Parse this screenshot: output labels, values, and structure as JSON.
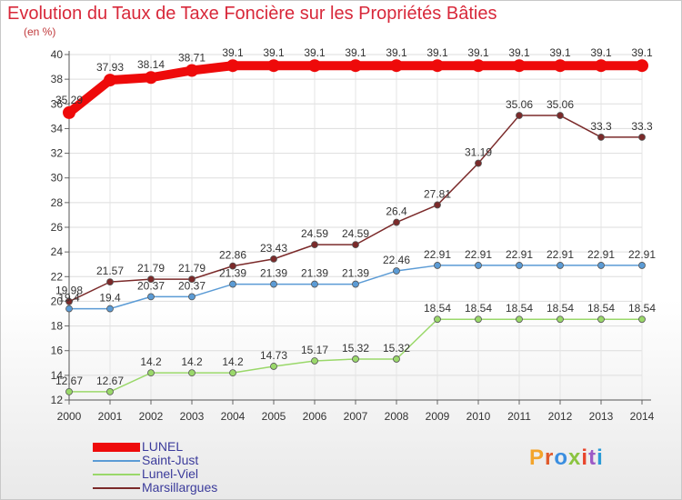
{
  "header": {
    "title": "Evolution du Taux de Taxe Foncière sur les Propriétés Bâties",
    "subtitle": "(en %)"
  },
  "brand": {
    "logo_text": "Proxiti",
    "logo_colors": [
      "#f3a42b",
      "#e05a2b",
      "#3a8ee0",
      "#8bc440",
      "#e8452c",
      "#9c5bc6",
      "#2b9bd6"
    ]
  },
  "chart_data": {
    "type": "line",
    "title": "Evolution du Taux de Taxe Foncière sur les Propriétés Bâties",
    "ylabel": "(en %)",
    "xlabel": "",
    "ylim": [
      12,
      40
    ],
    "yticks": [
      12,
      14,
      16,
      18,
      20,
      22,
      24,
      26,
      28,
      30,
      32,
      34,
      36,
      38,
      40
    ],
    "categories": [
      "2000",
      "2001",
      "2002",
      "2003",
      "2004",
      "2005",
      "2006",
      "2007",
      "2008",
      "2009",
      "2010",
      "2011",
      "2012",
      "2013",
      "2014"
    ],
    "grid": true,
    "legend_position": "bottom-left",
    "series": [
      {
        "name": "LUNEL",
        "color": "#ee0a0a",
        "bold": true,
        "values": [
          35.29,
          37.93,
          38.14,
          38.71,
          39.1,
          39.1,
          39.1,
          39.1,
          39.1,
          39.1,
          39.1,
          39.1,
          39.1,
          39.1,
          39.1
        ],
        "labels": [
          "35.29",
          "37.93",
          "38.14",
          "38.71",
          "39.1",
          "39.1",
          "39.1",
          "39.1",
          "39.1",
          "39.1",
          "39.1",
          "39.1",
          "39.1",
          "39.1",
          "39.1"
        ]
      },
      {
        "name": "Saint-Just",
        "color": "#5b9bd5",
        "bold": false,
        "values": [
          19.4,
          19.4,
          20.37,
          20.37,
          21.39,
          21.39,
          21.39,
          21.39,
          22.46,
          22.91,
          22.91,
          22.91,
          22.91,
          22.91,
          22.91
        ],
        "labels": [
          "19.4",
          "19.4",
          "20.37",
          "20.37",
          "21.39",
          "21.39",
          "21.39",
          "21.39",
          "22.46",
          "22.91",
          "22.91",
          "22.91",
          "22.91",
          "22.91",
          "22.91"
        ]
      },
      {
        "name": "Lunel-Viel",
        "color": "#9ad86a",
        "bold": false,
        "values": [
          12.67,
          12.67,
          14.2,
          14.2,
          14.2,
          14.73,
          15.17,
          15.32,
          15.32,
          18.54,
          18.54,
          18.54,
          18.54,
          18.54,
          18.54
        ],
        "labels": [
          "12.67",
          "12.67",
          "14.2",
          "14.2",
          "14.2",
          "14.73",
          "15.17",
          "15.32",
          "15.32",
          "18.54",
          "18.54",
          "18.54",
          "18.54",
          "18.54",
          "18.54"
        ]
      },
      {
        "name": "Marsillargues",
        "color": "#7b2a2a",
        "bold": false,
        "values": [
          19.98,
          21.57,
          21.79,
          21.79,
          22.86,
          23.43,
          24.59,
          24.59,
          26.4,
          27.81,
          31.19,
          35.06,
          35.06,
          33.3,
          33.3
        ],
        "labels": [
          "19.98",
          "21.57",
          "21.79",
          "21.79",
          "22.86",
          "23.43",
          "24.59",
          "24.59",
          "26.4",
          "27.81",
          "31.19",
          "35.06",
          "35.06",
          "33.3",
          "33.3"
        ]
      }
    ]
  }
}
